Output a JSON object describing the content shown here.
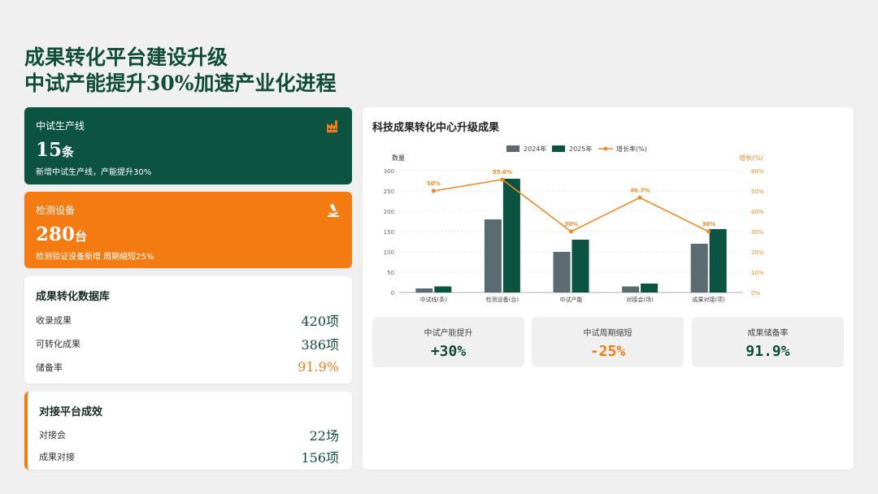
{
  "header": {
    "title_line1": "成果转化平台建设升级",
    "title_line2": "中试产能提升30%加速产业化进程"
  },
  "kpis": [
    {
      "label": "中试生产线",
      "value": "15",
      "unit": "条",
      "note": "新增中试生产线，产能提升30%",
      "icon": "factory-icon",
      "color": "#0c5441"
    },
    {
      "label": "检测设备",
      "value": "280",
      "unit": "台",
      "note": "检测验证设备新增  周期缩短25%",
      "icon": "microscope-icon",
      "color": "#f47a12"
    }
  ],
  "database": {
    "title": "成果转化数据库",
    "rows": [
      {
        "label": "收录成果",
        "value": "420项"
      },
      {
        "label": "可转化成果",
        "value": "386项"
      },
      {
        "label": "储备率",
        "value": "91.9%"
      }
    ]
  },
  "platform": {
    "title": "对接平台成效",
    "rows": [
      {
        "label": "对接会",
        "value": "22场"
      },
      {
        "label": "成果对接",
        "value": "156项"
      }
    ]
  },
  "chart_panel": {
    "title": "科技成果转化中心升级成果"
  },
  "chart_data": {
    "type": "bar",
    "title": "科技成果转化中心升级成果",
    "categories": [
      "中试线(条)",
      "检测设备(台)",
      "中试产能",
      "对接会(场)",
      "成果对接(项)"
    ],
    "series": [
      {
        "name": "2024年",
        "type": "bar",
        "color": "#5a6b72",
        "values": [
          10,
          180,
          100,
          15,
          120
        ]
      },
      {
        "name": "2025年",
        "type": "bar",
        "color": "#0c5441",
        "values": [
          15,
          280,
          130,
          22,
          156
        ]
      },
      {
        "name": "增长率(%)",
        "type": "line",
        "color": "#f08a24",
        "axis": "right",
        "values": [
          50,
          55.6,
          30,
          46.7,
          30
        ]
      }
    ],
    "point_labels": [
      "50%",
      "55.6%",
      "30%",
      "46.7%",
      "30%"
    ],
    "ylabel": "数量",
    "y2label": "增长(%)",
    "ylim": [
      0,
      300
    ],
    "yticks": [
      "0",
      "50",
      "100",
      "150",
      "200",
      "250",
      "300"
    ],
    "y2lim": [
      0,
      60
    ],
    "y2ticks": [
      "0%",
      "10%",
      "20%",
      "30%",
      "40%",
      "50%",
      "60%"
    ],
    "legend": "top-center",
    "grid": true
  },
  "summary": [
    {
      "label": "中试产能提升",
      "value": "+30%",
      "accent": "green"
    },
    {
      "label": "中试周期缩短",
      "value": "-25%",
      "accent": "orange"
    },
    {
      "label": "成果储备率",
      "value": "91.9%",
      "accent": "green"
    }
  ]
}
